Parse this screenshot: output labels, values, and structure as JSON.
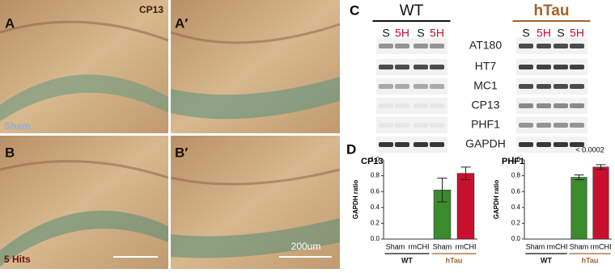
{
  "panels": {
    "a": "A",
    "a_prime": "A′",
    "b": "B",
    "b_prime": "B′",
    "c": "C",
    "d": "D"
  },
  "micrographs": {
    "stain": "CP13",
    "sham": "Sham",
    "hits": "5 Hits",
    "scale": "200um"
  },
  "blot": {
    "groups": [
      {
        "name": "WT",
        "lanes": [
          "S",
          "5H",
          "S",
          "5H"
        ]
      },
      {
        "name": "hTau",
        "lanes": [
          "S",
          "5H",
          "S",
          "5H"
        ]
      }
    ],
    "rows": [
      "AT180",
      "HT7",
      "MC1",
      "CP13",
      "PHF1",
      "GAPDH"
    ]
  },
  "chart_data": [
    {
      "type": "bar",
      "title": "CP13",
      "y_label": "GAPDH ratio",
      "categories": [
        "Sham",
        "rmCHI",
        "Sham",
        "rmCHI"
      ],
      "group_labels": [
        "WT",
        "hTau"
      ],
      "values": [
        null,
        null,
        0.62,
        0.83
      ],
      "errors": [
        null,
        null,
        0.15,
        0.08
      ],
      "colors": [
        "#3b8a2c",
        "#c8102e",
        "#3b8a2c",
        "#c8102e"
      ],
      "ylim": [
        0,
        1
      ],
      "yticks": [
        {
          "value": 0,
          "label": "0.0"
        },
        {
          "value": 0.2,
          "label": "0.2"
        },
        {
          "value": 0.4,
          "label": "0.4"
        },
        {
          "value": 0.6,
          "label": "0.6"
        },
        {
          "value": 0.8,
          "label": "0.8"
        },
        {
          "value": 1,
          "label": "1.0"
        }
      ]
    },
    {
      "type": "bar",
      "title": "PHF1",
      "y_label": "GAPDH ratio",
      "annotation": "< 0.0002",
      "categories": [
        "Sham",
        "rmCHI",
        "Sham",
        "rmCHI"
      ],
      "group_labels": [
        "WT",
        "hTau"
      ],
      "values": [
        null,
        null,
        0.78,
        0.91
      ],
      "errors": [
        null,
        null,
        0.03,
        0.03
      ],
      "colors": [
        "#3b8a2c",
        "#c8102e",
        "#3b8a2c",
        "#c8102e"
      ],
      "ylim": [
        0,
        1
      ],
      "yticks": [
        {
          "value": 0,
          "label": "0.0"
        },
        {
          "value": 0.2,
          "label": "0.2"
        },
        {
          "value": 0.4,
          "label": "0.4"
        },
        {
          "value": 0.6,
          "label": "0.6"
        },
        {
          "value": 0.8,
          "label": "0.8"
        },
        {
          "value": 1,
          "label": "1.0"
        }
      ]
    }
  ]
}
